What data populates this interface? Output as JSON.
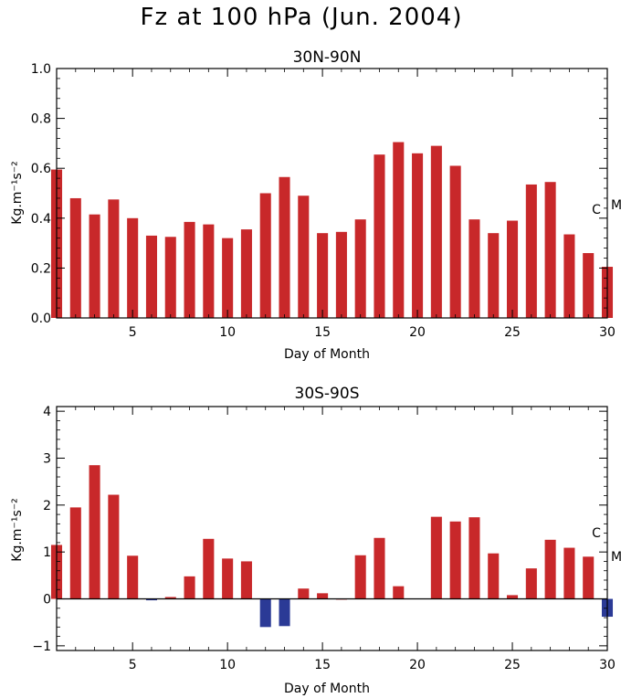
{
  "figure_title": "Fz at 100 hPa (Jun. 2004)",
  "chart_data": [
    {
      "type": "bar",
      "title": "30N-90N",
      "xlabel": "Day of Month",
      "ylabel": "Kg.m⁻¹s⁻²",
      "xlim": [
        1,
        30
      ],
      "ylim": [
        0.0,
        1.0
      ],
      "xticks": [
        5,
        10,
        15,
        20,
        25,
        30
      ],
      "yticks": [
        0.0,
        0.2,
        0.4,
        0.6,
        0.8,
        1.0
      ],
      "ytick_labels": [
        "0.0",
        "0.2",
        "0.4",
        "0.6",
        "0.8",
        "1.0"
      ],
      "grid": false,
      "x": [
        1,
        2,
        3,
        4,
        5,
        6,
        7,
        8,
        9,
        10,
        11,
        12,
        13,
        14,
        15,
        16,
        17,
        18,
        19,
        20,
        21,
        22,
        23,
        24,
        25,
        26,
        27,
        28,
        29,
        30
      ],
      "values": [
        0.595,
        0.48,
        0.415,
        0.475,
        0.4,
        0.33,
        0.325,
        0.385,
        0.375,
        0.32,
        0.355,
        0.5,
        0.565,
        0.49,
        0.34,
        0.345,
        0.395,
        0.655,
        0.705,
        0.66,
        0.69,
        0.61,
        0.395,
        0.34,
        0.39,
        0.535,
        0.545,
        0.335,
        0.26,
        0.205
      ],
      "annotations": [
        {
          "text": "C",
          "y": 0.435
        },
        {
          "text": "M",
          "y": 0.455
        }
      ],
      "positive_color": "#c8282a",
      "negative_color": "#2b3a96"
    },
    {
      "type": "bar",
      "title": "30S-90S",
      "xlabel": "Day of Month",
      "ylabel": "Kg.m⁻¹s⁻²",
      "xlim": [
        1,
        30
      ],
      "ylim": [
        -1.1,
        4.1
      ],
      "xticks": [
        5,
        10,
        15,
        20,
        25,
        30
      ],
      "yticks": [
        -1,
        0,
        1,
        2,
        3,
        4
      ],
      "ytick_labels": [
        "−1",
        "0",
        "1",
        "2",
        "3",
        "4"
      ],
      "grid": false,
      "zero_line": true,
      "x": [
        1,
        2,
        3,
        4,
        5,
        6,
        7,
        8,
        9,
        10,
        11,
        12,
        13,
        14,
        15,
        16,
        17,
        18,
        19,
        20,
        21,
        22,
        23,
        24,
        25,
        26,
        27,
        28,
        29,
        30
      ],
      "values": [
        1.15,
        1.95,
        2.85,
        2.22,
        0.92,
        -0.03,
        0.04,
        0.48,
        1.28,
        0.86,
        0.8,
        -0.6,
        -0.58,
        0.22,
        0.12,
        0.0,
        0.93,
        1.3,
        0.27,
        0.01,
        1.75,
        1.65,
        1.74,
        0.97,
        0.08,
        0.65,
        1.26,
        1.09,
        0.9,
        -0.38
      ],
      "annotations": [
        {
          "text": "C",
          "y": 1.41
        },
        {
          "text": "M",
          "y": 0.91
        }
      ],
      "positive_color": "#c8282a",
      "negative_color": "#2b3a96"
    }
  ]
}
